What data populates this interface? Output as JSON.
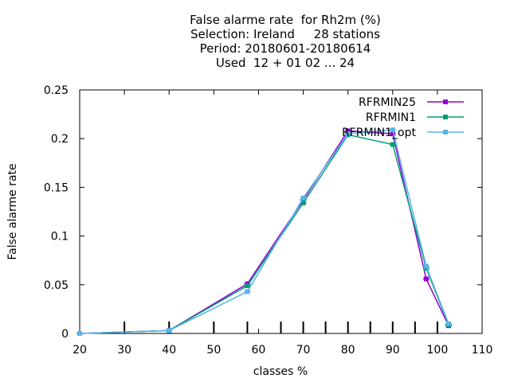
{
  "chart_data": {
    "type": "line",
    "title_lines": [
      "False alarme rate  for Rh2m (%)",
      "Selection: Ireland     28 stations",
      "Period: 20180601-20180614",
      "Used  12 + 01 02 ... 24"
    ],
    "xlabel": "classes %",
    "ylabel": "False alarme rate",
    "xlim": [
      20,
      110
    ],
    "ylim": [
      0,
      0.25
    ],
    "xticks": [
      20,
      30,
      40,
      50,
      60,
      70,
      80,
      90,
      100,
      110
    ],
    "xtick_labels": [
      "20",
      "30",
      "40",
      "50",
      "60",
      "70",
      "80",
      "90",
      "100",
      "110"
    ],
    "yticks": [
      0,
      0.05,
      0.1,
      0.15,
      0.2,
      0.25
    ],
    "ytick_labels": [
      "0",
      "0.05",
      "0.1",
      "0.15",
      "0.2",
      "0.25"
    ],
    "class_markers": [
      30,
      40,
      50,
      57.5,
      65,
      70,
      75,
      80,
      85,
      90,
      95,
      100
    ],
    "legend_position": "top-right",
    "grid": false,
    "series": [
      {
        "name": "RFRMIN25",
        "color": "#9400d3",
        "x": [
          20,
          40,
          57.5,
          70,
          80,
          90,
          97.5,
          102.5
        ],
        "y": [
          0.0,
          0.003,
          0.051,
          0.137,
          0.208,
          0.205,
          0.056,
          0.008
        ]
      },
      {
        "name": "RFRMIN1",
        "color": "#009e73",
        "x": [
          20,
          40,
          57.5,
          70,
          80,
          90,
          97.5,
          102.5
        ],
        "y": [
          0.0,
          0.003,
          0.049,
          0.134,
          0.204,
          0.194,
          0.067,
          0.009
        ]
      },
      {
        "name": "RFRMIN1_opt",
        "color": "#56b4e9",
        "x": [
          20,
          40,
          57.5,
          70,
          80,
          90,
          97.5,
          102.5
        ],
        "y": [
          0.0,
          0.003,
          0.043,
          0.139,
          0.205,
          0.209,
          0.069,
          0.01
        ]
      }
    ]
  }
}
